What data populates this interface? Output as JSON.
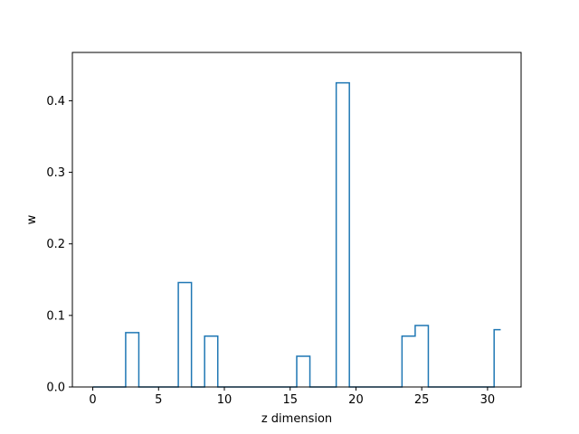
{
  "chart_data": {
    "type": "line",
    "title": "",
    "xlabel": "z dimension",
    "ylabel": "w",
    "xlim": [
      -1.55,
      32.55
    ],
    "ylim": [
      0,
      0.4675
    ],
    "xticks": [
      0,
      5,
      10,
      15,
      20,
      25,
      30
    ],
    "yticks": [
      0.0,
      0.1,
      0.2,
      0.3,
      0.4
    ],
    "xtick_labels": [
      "0",
      "5",
      "10",
      "15",
      "20",
      "25",
      "30"
    ],
    "ytick_labels": [
      "0.0",
      "0.1",
      "0.2",
      "0.3",
      "0.4"
    ],
    "grid": false,
    "drawstyle": "steps-mid",
    "series": [
      {
        "color": "#1f77b4",
        "x": [
          0,
          1,
          2,
          3,
          4,
          5,
          6,
          7,
          8,
          9,
          10,
          11,
          12,
          13,
          14,
          15,
          16,
          17,
          18,
          19,
          20,
          21,
          22,
          23,
          24,
          25,
          26,
          27,
          28,
          29,
          30,
          31
        ],
        "values": [
          0,
          0,
          0,
          0.076,
          0,
          0,
          0,
          0.146,
          0,
          0.071,
          0,
          0,
          0,
          0,
          0,
          0,
          0.043,
          0,
          0,
          0.425,
          0,
          0,
          0,
          0,
          0.071,
          0.086,
          0,
          0,
          0,
          0,
          0,
          0.08
        ]
      }
    ]
  }
}
